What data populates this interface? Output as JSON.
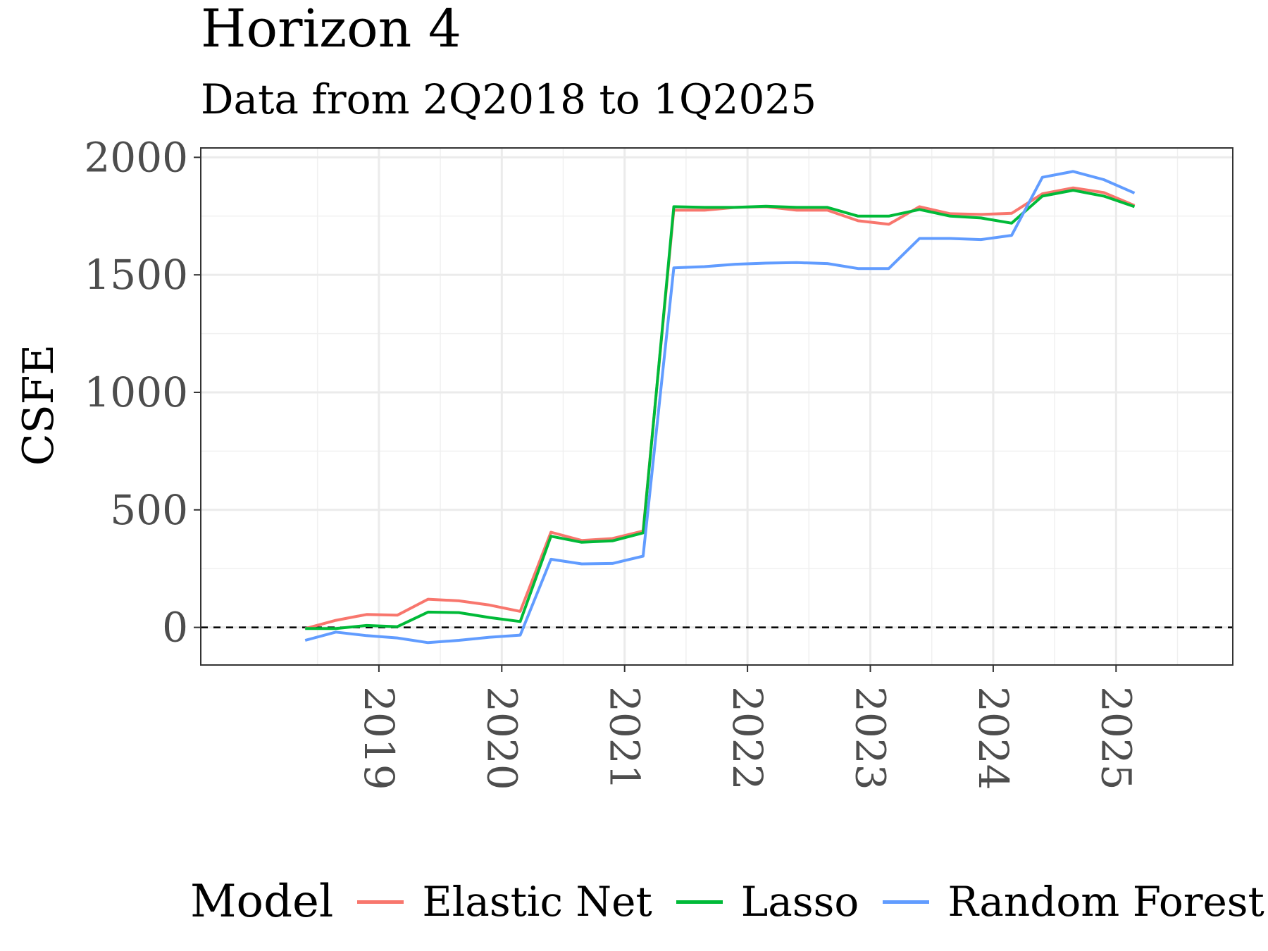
{
  "chart_data": {
    "type": "line",
    "title": "Horizon 4",
    "subtitle": "Data from 2Q2018 to 1Q2025",
    "xlabel": "",
    "ylabel": "CSFE",
    "xlim": [
      2017.55,
      2025.95
    ],
    "ylim": [
      -160,
      2040
    ],
    "x_ticks": [
      2019,
      2020,
      2021,
      2022,
      2023,
      2024,
      2025
    ],
    "y_ticks": [
      0,
      500,
      1000,
      1500,
      2000
    ],
    "grid": true,
    "reference_line": {
      "y": 0,
      "style": "dashed"
    },
    "legend": {
      "title": "Model",
      "placement": "bottom"
    },
    "x": [
      2018.4,
      2018.65,
      2018.9,
      2019.15,
      2019.4,
      2019.65,
      2019.9,
      2020.15,
      2020.4,
      2020.65,
      2020.9,
      2021.15,
      2021.4,
      2021.65,
      2021.9,
      2022.15,
      2022.4,
      2022.65,
      2022.9,
      2023.15,
      2023.4,
      2023.65,
      2023.9,
      2024.15,
      2024.4,
      2024.65,
      2024.9,
      2025.15
    ],
    "series": [
      {
        "name": "Elastic Net",
        "color": "#F8766D",
        "values": [
          -5,
          30,
          55,
          52,
          120,
          113,
          95,
          68,
          405,
          370,
          378,
          410,
          1775,
          1775,
          1787,
          1790,
          1775,
          1775,
          1730,
          1715,
          1790,
          1760,
          1757,
          1762,
          1845,
          1870,
          1850,
          1795
        ]
      },
      {
        "name": "Lasso",
        "color": "#00BA38",
        "values": [
          -5,
          -5,
          8,
          3,
          65,
          63,
          42,
          25,
          388,
          362,
          368,
          402,
          1790,
          1787,
          1787,
          1792,
          1787,
          1787,
          1750,
          1750,
          1778,
          1750,
          1742,
          1720,
          1835,
          1860,
          1835,
          1790
        ]
      },
      {
        "name": "Random Forest",
        "color": "#619CFF",
        "values": [
          -55,
          -20,
          -35,
          -45,
          -65,
          -55,
          -42,
          -33,
          290,
          270,
          272,
          303,
          1530,
          1535,
          1545,
          1550,
          1552,
          1548,
          1527,
          1527,
          1655,
          1655,
          1650,
          1668,
          1915,
          1940,
          1905,
          1848
        ]
      }
    ]
  }
}
